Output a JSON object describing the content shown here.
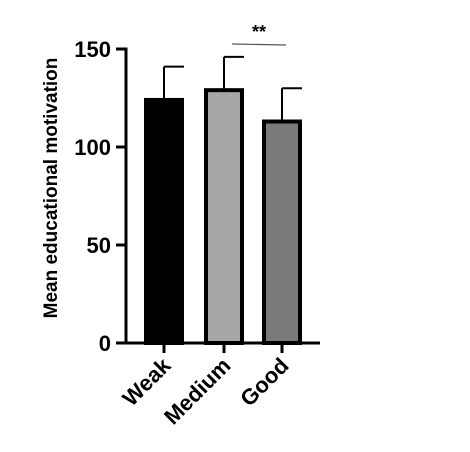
{
  "chart_data": {
    "type": "bar",
    "title": "",
    "xlabel": "",
    "ylabel": "Mean educational motivation",
    "ylim": [
      0,
      150
    ],
    "yticks": [
      0,
      50,
      100,
      150
    ],
    "ytick_labels": [
      "0",
      "50",
      "100",
      "150"
    ],
    "categories": [
      "Weak",
      "Medium",
      "Good"
    ],
    "values": [
      124,
      129,
      113
    ],
    "error_upper": [
      17,
      17,
      17
    ],
    "bar_colors": [
      "#000000",
      "#a6a6a6",
      "#7a7a7a"
    ],
    "grid": false,
    "legend": "none",
    "annotations": [
      {
        "text": "**",
        "from_category": "Medium",
        "to_category": "Good"
      }
    ]
  }
}
